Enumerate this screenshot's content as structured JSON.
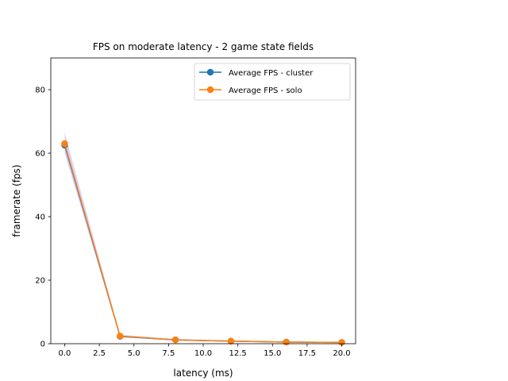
{
  "chart_data": {
    "type": "line",
    "title": "FPS on moderate latency - 2 game state fields",
    "xlabel": "latency (ms)",
    "ylabel": "framerate (fps)",
    "xlim": [
      -1,
      21
    ],
    "ylim": [
      0,
      90
    ],
    "xticks": [
      "0.0",
      "2.5",
      "5.0",
      "7.5",
      "10.0",
      "12.5",
      "15.0",
      "17.5",
      "20.0"
    ],
    "yticks": [
      "0",
      "20",
      "40",
      "60",
      "80"
    ],
    "x": [
      0,
      4,
      8,
      12,
      16,
      20
    ],
    "series": [
      {
        "name": "Average FPS - cluster",
        "color": "#1f77b4",
        "values": [
          62.5,
          2.3,
          1.2,
          0.8,
          0.5,
          0.4
        ]
      },
      {
        "name": "Average FPS - solo",
        "color": "#ff7f0e",
        "values": [
          63.0,
          2.4,
          1.2,
          0.8,
          0.5,
          0.4
        ]
      }
    ],
    "band": {
      "color": "#b0b0ff",
      "lower": [
        60.0,
        2.0,
        1.0,
        0.6,
        0.4,
        0.3
      ],
      "upper": [
        66.5,
        2.8,
        1.5,
        1.0,
        0.7,
        0.6
      ]
    },
    "grid": false,
    "legend": "upper right"
  }
}
